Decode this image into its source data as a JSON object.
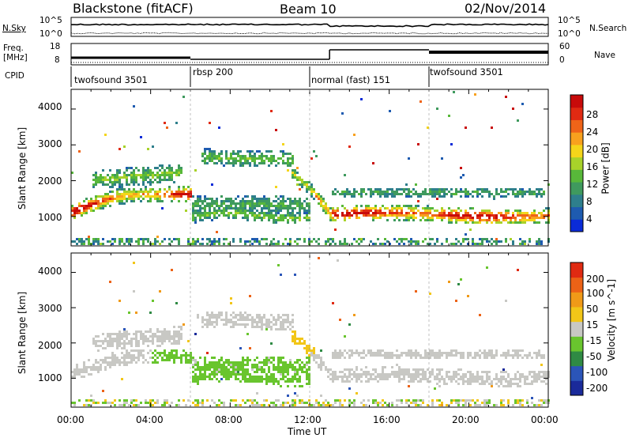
{
  "header": {
    "station": "Blackstone (fitACF)",
    "beam": "Beam 10",
    "date": "02/Nov/2014"
  },
  "status_panels": {
    "left_labels": {
      "nsky": "N.Sky",
      "freq_line1": "Freq.",
      "freq_line2": "[MHz]",
      "cpid": "CPID"
    },
    "right_labels": {
      "nsearch": "N.Search",
      "nave": "Nave"
    },
    "noise_ticks_left": [
      "10^5",
      "10^0"
    ],
    "noise_ticks_right": [
      "10^5",
      "10^0"
    ],
    "freq_ticks": [
      "18",
      "8"
    ],
    "nave_ticks": [
      "60",
      "0"
    ],
    "cpid_segments": [
      {
        "label": "twofsound 3501",
        "start_hour": 0
      },
      {
        "label": "rbsp 200",
        "start_hour": 6
      },
      {
        "label": "normal (fast) 151",
        "start_hour": 12
      },
      {
        "label": "twofsound 3501",
        "start_hour": 18
      }
    ]
  },
  "chart_data": [
    {
      "type": "heatmap",
      "title": "",
      "quantity": "Power",
      "ylabel": "Slant Range [km]",
      "xlabel": "",
      "xlim_hours": [
        0,
        24
      ],
      "ylim": [
        180,
        4550
      ],
      "yticks": [
        "1000",
        "2000",
        "3000",
        "4000"
      ],
      "xticks": [
        "00:00",
        "04:00",
        "08:00",
        "12:00",
        "16:00",
        "20:00",
        "00:00"
      ],
      "colorbar": {
        "label": "Power [dB]",
        "ticks": [
          "4",
          "8",
          "12",
          "16",
          "20",
          "24",
          "28"
        ],
        "range": [
          0,
          30
        ],
        "colors": [
          "#0a2bd8",
          "#1e5bb0",
          "#2e7f8c",
          "#3f9a5e",
          "#58b83a",
          "#a8d22a",
          "#f4d51a",
          "#f8a11e",
          "#ef6418",
          "#e02a12",
          "#c80a0a"
        ]
      }
    },
    {
      "type": "heatmap",
      "title": "",
      "quantity": "Velocity",
      "ylabel": "Slant Range [km]",
      "xlabel": "Time UT",
      "xlim_hours": [
        0,
        24
      ],
      "ylim": [
        180,
        4550
      ],
      "yticks": [
        "1000",
        "2000",
        "3000",
        "4000"
      ],
      "xticks": [
        "00:00",
        "04:00",
        "08:00",
        "12:00",
        "16:00",
        "20:00",
        "00:00"
      ],
      "colorbar": {
        "label": "Velocity [m s^-1]",
        "ticks": [
          "200",
          "100",
          "50",
          "15",
          "-15",
          "-50",
          "-100",
          "-200"
        ],
        "range": [
          -250,
          250
        ],
        "colors": [
          "#1a2a9a",
          "#2b55b8",
          "#2f8a44",
          "#69c52e",
          "#c8c8c4",
          "#f2c618",
          "#f09a18",
          "#ec6216",
          "#e02a12"
        ]
      }
    }
  ]
}
